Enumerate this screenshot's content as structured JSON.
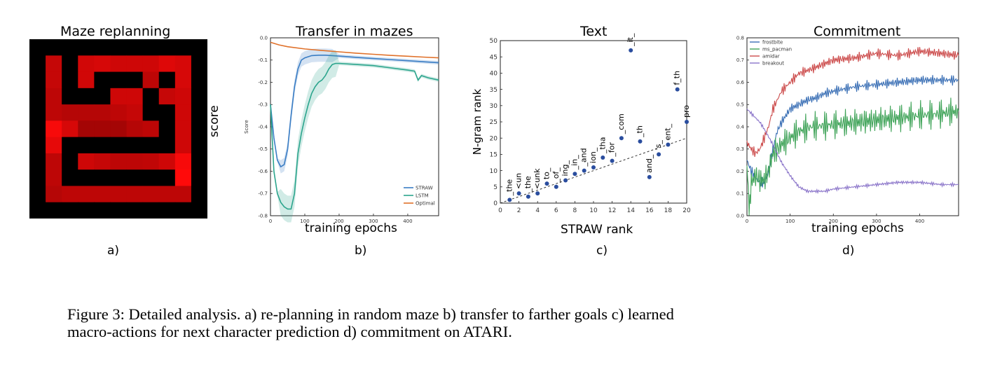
{
  "caption": {
    "line1": "Figure 3: Detailed analysis. a) re-planning in random maze b) transfer to farther goals c) learned",
    "line2": "macro-actions for next character prediction d) commitment on ATARI."
  },
  "chart_data": [
    {
      "panel_label": "a)",
      "type": "heatmap",
      "title": "Maze replanning",
      "ylabel": "score",
      "cell_values": [
        [
          0,
          0,
          0,
          0,
          0,
          0,
          0,
          0,
          0,
          0,
          0
        ],
        [
          0,
          0.65,
          0,
          0.72,
          0.75,
          0.7,
          0.7,
          0.7,
          0.8,
          0.75,
          0
        ],
        [
          0,
          0.65,
          0,
          0.72,
          0,
          0,
          0,
          0.6,
          0,
          0.75,
          0
        ],
        [
          0,
          0.6,
          0,
          0,
          0,
          0.7,
          0.7,
          0,
          0.65,
          0.7,
          0
        ],
        [
          0,
          0.6,
          0.55,
          0.55,
          0.55,
          0.6,
          0.65,
          0,
          0,
          0.7,
          0
        ],
        [
          0,
          0.95,
          0.75,
          0.45,
          0.45,
          0.45,
          0.55,
          0.6,
          0,
          0.7,
          0
        ],
        [
          0,
          0.85,
          0,
          0,
          0,
          0,
          0,
          0,
          0,
          0.7,
          0
        ],
        [
          0,
          0.6,
          0,
          0.7,
          0.65,
          0.6,
          0.6,
          0.62,
          0.7,
          0.95,
          0
        ],
        [
          0,
          0.6,
          0,
          0,
          0,
          0,
          0,
          0,
          0,
          1.0,
          0
        ],
        [
          0,
          0.55,
          0.6,
          0.6,
          0.6,
          0.6,
          0.6,
          0.6,
          0.6,
          0.6,
          0
        ],
        [
          0,
          0,
          0,
          0,
          0,
          0,
          0,
          0,
          0,
          0,
          0
        ]
      ]
    },
    {
      "panel_label": "b)",
      "type": "line",
      "title": "Transfer in mazes",
      "xlabel": "training epochs",
      "ylabel": "Score",
      "xlim": [
        0,
        490
      ],
      "ylim": [
        -0.8,
        0.0
      ],
      "xticks": [
        0,
        100,
        200,
        300,
        400
      ],
      "yticks": [
        0.0,
        -0.1,
        -0.2,
        -0.3,
        -0.4,
        -0.5,
        -0.6,
        -0.7,
        -0.8
      ],
      "legend_position": "bottom-right",
      "series": [
        {
          "name": "STRAW",
          "color": "#3a7dc4",
          "x": [
            0,
            10,
            20,
            30,
            40,
            50,
            60,
            70,
            80,
            90,
            100,
            120,
            140,
            160,
            180,
            200,
            250,
            300,
            350,
            400,
            450,
            490
          ],
          "y": [
            -0.3,
            -0.45,
            -0.55,
            -0.58,
            -0.57,
            -0.5,
            -0.35,
            -0.22,
            -0.14,
            -0.1,
            -0.09,
            -0.08,
            -0.078,
            -0.078,
            -0.08,
            -0.082,
            -0.088,
            -0.093,
            -0.098,
            -0.103,
            -0.108,
            -0.112
          ]
        },
        {
          "name": "LSTM",
          "color": "#2ca58d",
          "x": [
            0,
            10,
            20,
            30,
            40,
            50,
            60,
            70,
            80,
            90,
            100,
            110,
            120,
            130,
            140,
            150,
            160,
            170,
            180,
            190,
            200,
            250,
            300,
            350,
            400,
            420,
            430,
            440,
            460,
            490
          ],
          "y": [
            -0.3,
            -0.6,
            -0.7,
            -0.74,
            -0.76,
            -0.77,
            -0.77,
            -0.7,
            -0.52,
            -0.43,
            -0.36,
            -0.3,
            -0.25,
            -0.22,
            -0.2,
            -0.19,
            -0.17,
            -0.14,
            -0.12,
            -0.115,
            -0.115,
            -0.12,
            -0.125,
            -0.135,
            -0.145,
            -0.15,
            -0.19,
            -0.17,
            -0.18,
            -0.19
          ]
        },
        {
          "name": "Optimal",
          "color": "#e0712a",
          "x": [
            0,
            25,
            50,
            100,
            150,
            200,
            250,
            300,
            350,
            400,
            450,
            490
          ],
          "y": [
            -0.02,
            -0.032,
            -0.04,
            -0.05,
            -0.057,
            -0.063,
            -0.069,
            -0.074,
            -0.079,
            -0.083,
            -0.087,
            -0.09
          ]
        }
      ]
    },
    {
      "panel_label": "c)",
      "type": "scatter",
      "title": "Text",
      "xlabel": "STRAW rank",
      "ylabel": "N-gram rank",
      "xlim": [
        0,
        20
      ],
      "ylim": [
        0,
        50
      ],
      "xticks": [
        0,
        2,
        4,
        6,
        8,
        10,
        12,
        14,
        16,
        18,
        20
      ],
      "yticks": [
        0,
        5,
        10,
        15,
        20,
        25,
        30,
        35,
        40,
        45,
        50
      ],
      "points": [
        {
          "x": 1,
          "y": 1,
          "label": "_the"
        },
        {
          "x": 2,
          "y": 3,
          "label": "<un"
        },
        {
          "x": 3,
          "y": 2,
          "label": "_the"
        },
        {
          "x": 4,
          "y": 3,
          "label": "<unk"
        },
        {
          "x": 5,
          "y": 6,
          "label": "to_"
        },
        {
          "x": 6,
          "y": 5,
          "label": "_of_"
        },
        {
          "x": 7,
          "y": 7,
          "label": "ing_"
        },
        {
          "x": 8,
          "y": 9,
          "label": "_in_"
        },
        {
          "x": 9,
          "y": 10,
          "label": "_and"
        },
        {
          "x": 10,
          "y": 11,
          "label": "ion_"
        },
        {
          "x": 11,
          "y": 14,
          "label": "_tha"
        },
        {
          "x": 12,
          "y": 13,
          "label": "_for"
        },
        {
          "x": 13,
          "y": 20,
          "label": "_com"
        },
        {
          "x": 14,
          "y": 47,
          "label": "_it_"
        },
        {
          "x": 15,
          "y": 19,
          "label": "_th"
        },
        {
          "x": 16,
          "y": 8,
          "label": "and_"
        },
        {
          "x": 17,
          "y": 15,
          "label": "'s_"
        },
        {
          "x": 18,
          "y": 18,
          "label": "ent_"
        },
        {
          "x": 19,
          "y": 35,
          "label": "f_th"
        },
        {
          "x": 20,
          "y": 25,
          "label": "pro"
        }
      ],
      "trend_line": {
        "x": [
          0,
          20
        ],
        "y": [
          0,
          20
        ],
        "style": "dashed"
      }
    },
    {
      "panel_label": "d)",
      "type": "line",
      "title": "Commitment",
      "xlabel": "training epochs",
      "xlim": [
        0,
        490
      ],
      "ylim": [
        0.0,
        0.8
      ],
      "xticks": [
        0,
        100,
        200,
        300,
        400
      ],
      "yticks": [
        0.0,
        0.1,
        0.2,
        0.3,
        0.4,
        0.5,
        0.6,
        0.7,
        0.8
      ],
      "legend_position": "top-left",
      "series": [
        {
          "name": "frostbite",
          "color": "#3a6fb5",
          "x": [
            0,
            10,
            20,
            30,
            40,
            50,
            60,
            70,
            80,
            90,
            100,
            120,
            140,
            160,
            180,
            200,
            250,
            300,
            350,
            400,
            450,
            490
          ],
          "y": [
            0.25,
            0.2,
            0.17,
            0.15,
            0.15,
            0.2,
            0.3,
            0.38,
            0.42,
            0.45,
            0.48,
            0.5,
            0.52,
            0.53,
            0.55,
            0.56,
            0.58,
            0.59,
            0.6,
            0.61,
            0.61,
            0.61
          ]
        },
        {
          "name": "ms_pacman",
          "color": "#3fa358",
          "x": [
            0,
            5,
            10,
            20,
            30,
            40,
            50,
            60,
            70,
            80,
            100,
            120,
            150,
            200,
            250,
            300,
            350,
            400,
            450,
            490
          ],
          "y": [
            0.2,
            0.05,
            0.15,
            0.18,
            0.16,
            0.16,
            0.2,
            0.28,
            0.3,
            0.32,
            0.35,
            0.38,
            0.4,
            0.41,
            0.42,
            0.43,
            0.44,
            0.45,
            0.46,
            0.47
          ]
        },
        {
          "name": "amidar",
          "color": "#cc4b4b",
          "x": [
            0,
            10,
            20,
            30,
            40,
            50,
            60,
            80,
            100,
            120,
            150,
            200,
            250,
            300,
            350,
            400,
            450,
            490
          ],
          "y": [
            0.33,
            0.3,
            0.28,
            0.3,
            0.35,
            0.4,
            0.48,
            0.56,
            0.6,
            0.64,
            0.66,
            0.7,
            0.71,
            0.73,
            0.72,
            0.74,
            0.73,
            0.72
          ]
        },
        {
          "name": "breakout",
          "color": "#8a74c9",
          "x": [
            0,
            10,
            20,
            30,
            40,
            60,
            80,
            100,
            120,
            140,
            160,
            180,
            200,
            250,
            300,
            350,
            400,
            450,
            490
          ],
          "y": [
            0.48,
            0.46,
            0.44,
            0.42,
            0.39,
            0.32,
            0.24,
            0.18,
            0.13,
            0.11,
            0.11,
            0.11,
            0.12,
            0.13,
            0.14,
            0.15,
            0.15,
            0.14,
            0.14
          ]
        }
      ]
    }
  ]
}
